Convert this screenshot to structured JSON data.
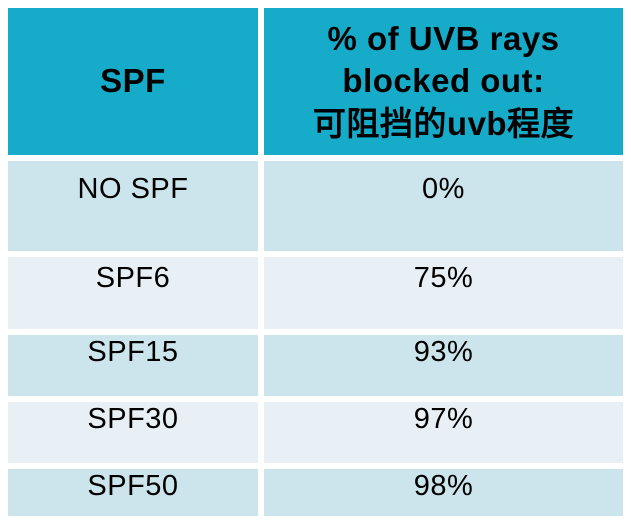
{
  "colors": {
    "header_bg": "#16abc9",
    "row_tint_dark": "#cce4ec",
    "row_tint_light": "#e8f0f6",
    "text": "#000000",
    "page_background": "#ffffff"
  },
  "table": {
    "header": {
      "col1": "SPF",
      "col2_line1": "% of UVB rays",
      "col2_line2": "blocked out:",
      "col2_line3": "可阻挡的uvb程度"
    },
    "rows": [
      {
        "label": "NO SPF",
        "value": "0%"
      },
      {
        "label": "SPF6",
        "value": "75%"
      },
      {
        "label": "SPF15",
        "value": "93%"
      },
      {
        "label": "SPF30",
        "value": "97%"
      },
      {
        "label": "SPF50",
        "value": "98%"
      }
    ]
  },
  "chart_data": {
    "type": "table",
    "title": "",
    "columns": [
      "SPF",
      "% of UVB rays blocked out: 可阻挡的uvb程度"
    ],
    "rows": [
      [
        "NO SPF",
        "0%"
      ],
      [
        "SPF6",
        "75%"
      ],
      [
        "SPF15",
        "93%"
      ],
      [
        "SPF30",
        "97%"
      ],
      [
        "SPF50",
        "98%"
      ]
    ],
    "spf_levels": [
      "NO SPF",
      "SPF6",
      "SPF15",
      "SPF30",
      "SPF50"
    ],
    "uvb_blocked_percent": [
      0,
      75,
      93,
      97,
      98
    ],
    "layout": "header row teal, data rows alternating light-blue tints, white gutters between cells"
  }
}
